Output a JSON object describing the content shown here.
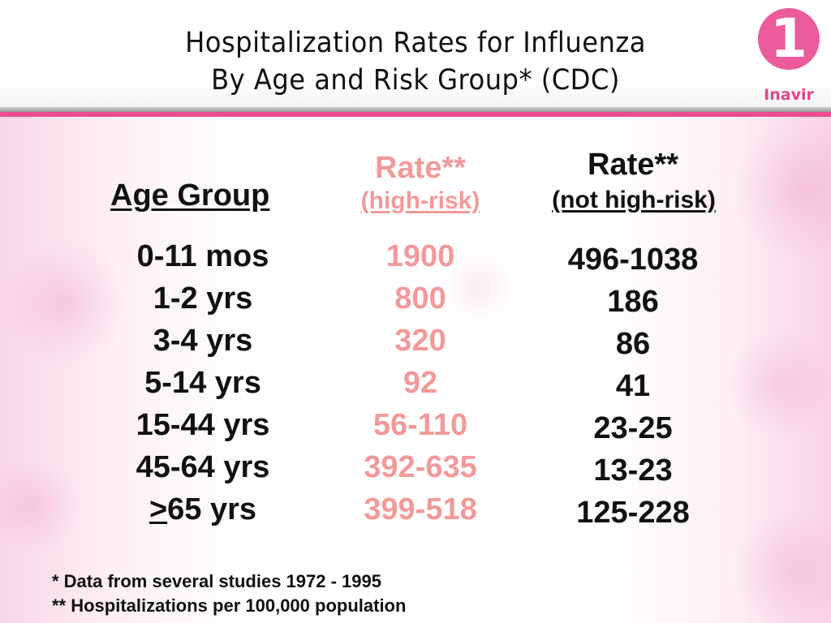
{
  "title": {
    "line1": "Hospitalization Rates for Influenza",
    "line2": "By Age and Risk Group* (CDC)"
  },
  "logo": {
    "mark": "1",
    "text": "Inavir"
  },
  "table": {
    "headers": {
      "age_group": "Age Group",
      "rate_high_risk": "Rate**",
      "rate_high_risk_sub": "(high-risk)",
      "rate_not_high_risk": "Rate**",
      "rate_not_high_risk_sub": "(not high-risk)"
    },
    "rows": [
      {
        "age": "0-11 mos",
        "high_risk": "1900",
        "not_high_risk": "496-1038"
      },
      {
        "age": "1-2 yrs",
        "high_risk": "800",
        "not_high_risk": "186"
      },
      {
        "age": "3-4 yrs",
        "high_risk": "320",
        "not_high_risk": "86"
      },
      {
        "age": "5-14 yrs",
        "high_risk": "92",
        "not_high_risk": "41"
      },
      {
        "age": "15-44 yrs",
        "high_risk": "56-110",
        "not_high_risk": "23-25"
      },
      {
        "age": "45-64 yrs",
        "high_risk": "392-635",
        "not_high_risk": "13-23"
      },
      {
        "age_symbol": ">",
        "age_rest": "65 yrs",
        "high_risk": "399-518",
        "not_high_risk": "125-228"
      }
    ]
  },
  "footnotes": {
    "note1": " * Data from several studies 1972 - 1995",
    "note2": "** Hospitalizations per 100,000 population"
  },
  "colors": {
    "accent_pink": "#ec4c92",
    "high_risk_text": "#f29a9a",
    "logo_text": "#e0468a"
  }
}
